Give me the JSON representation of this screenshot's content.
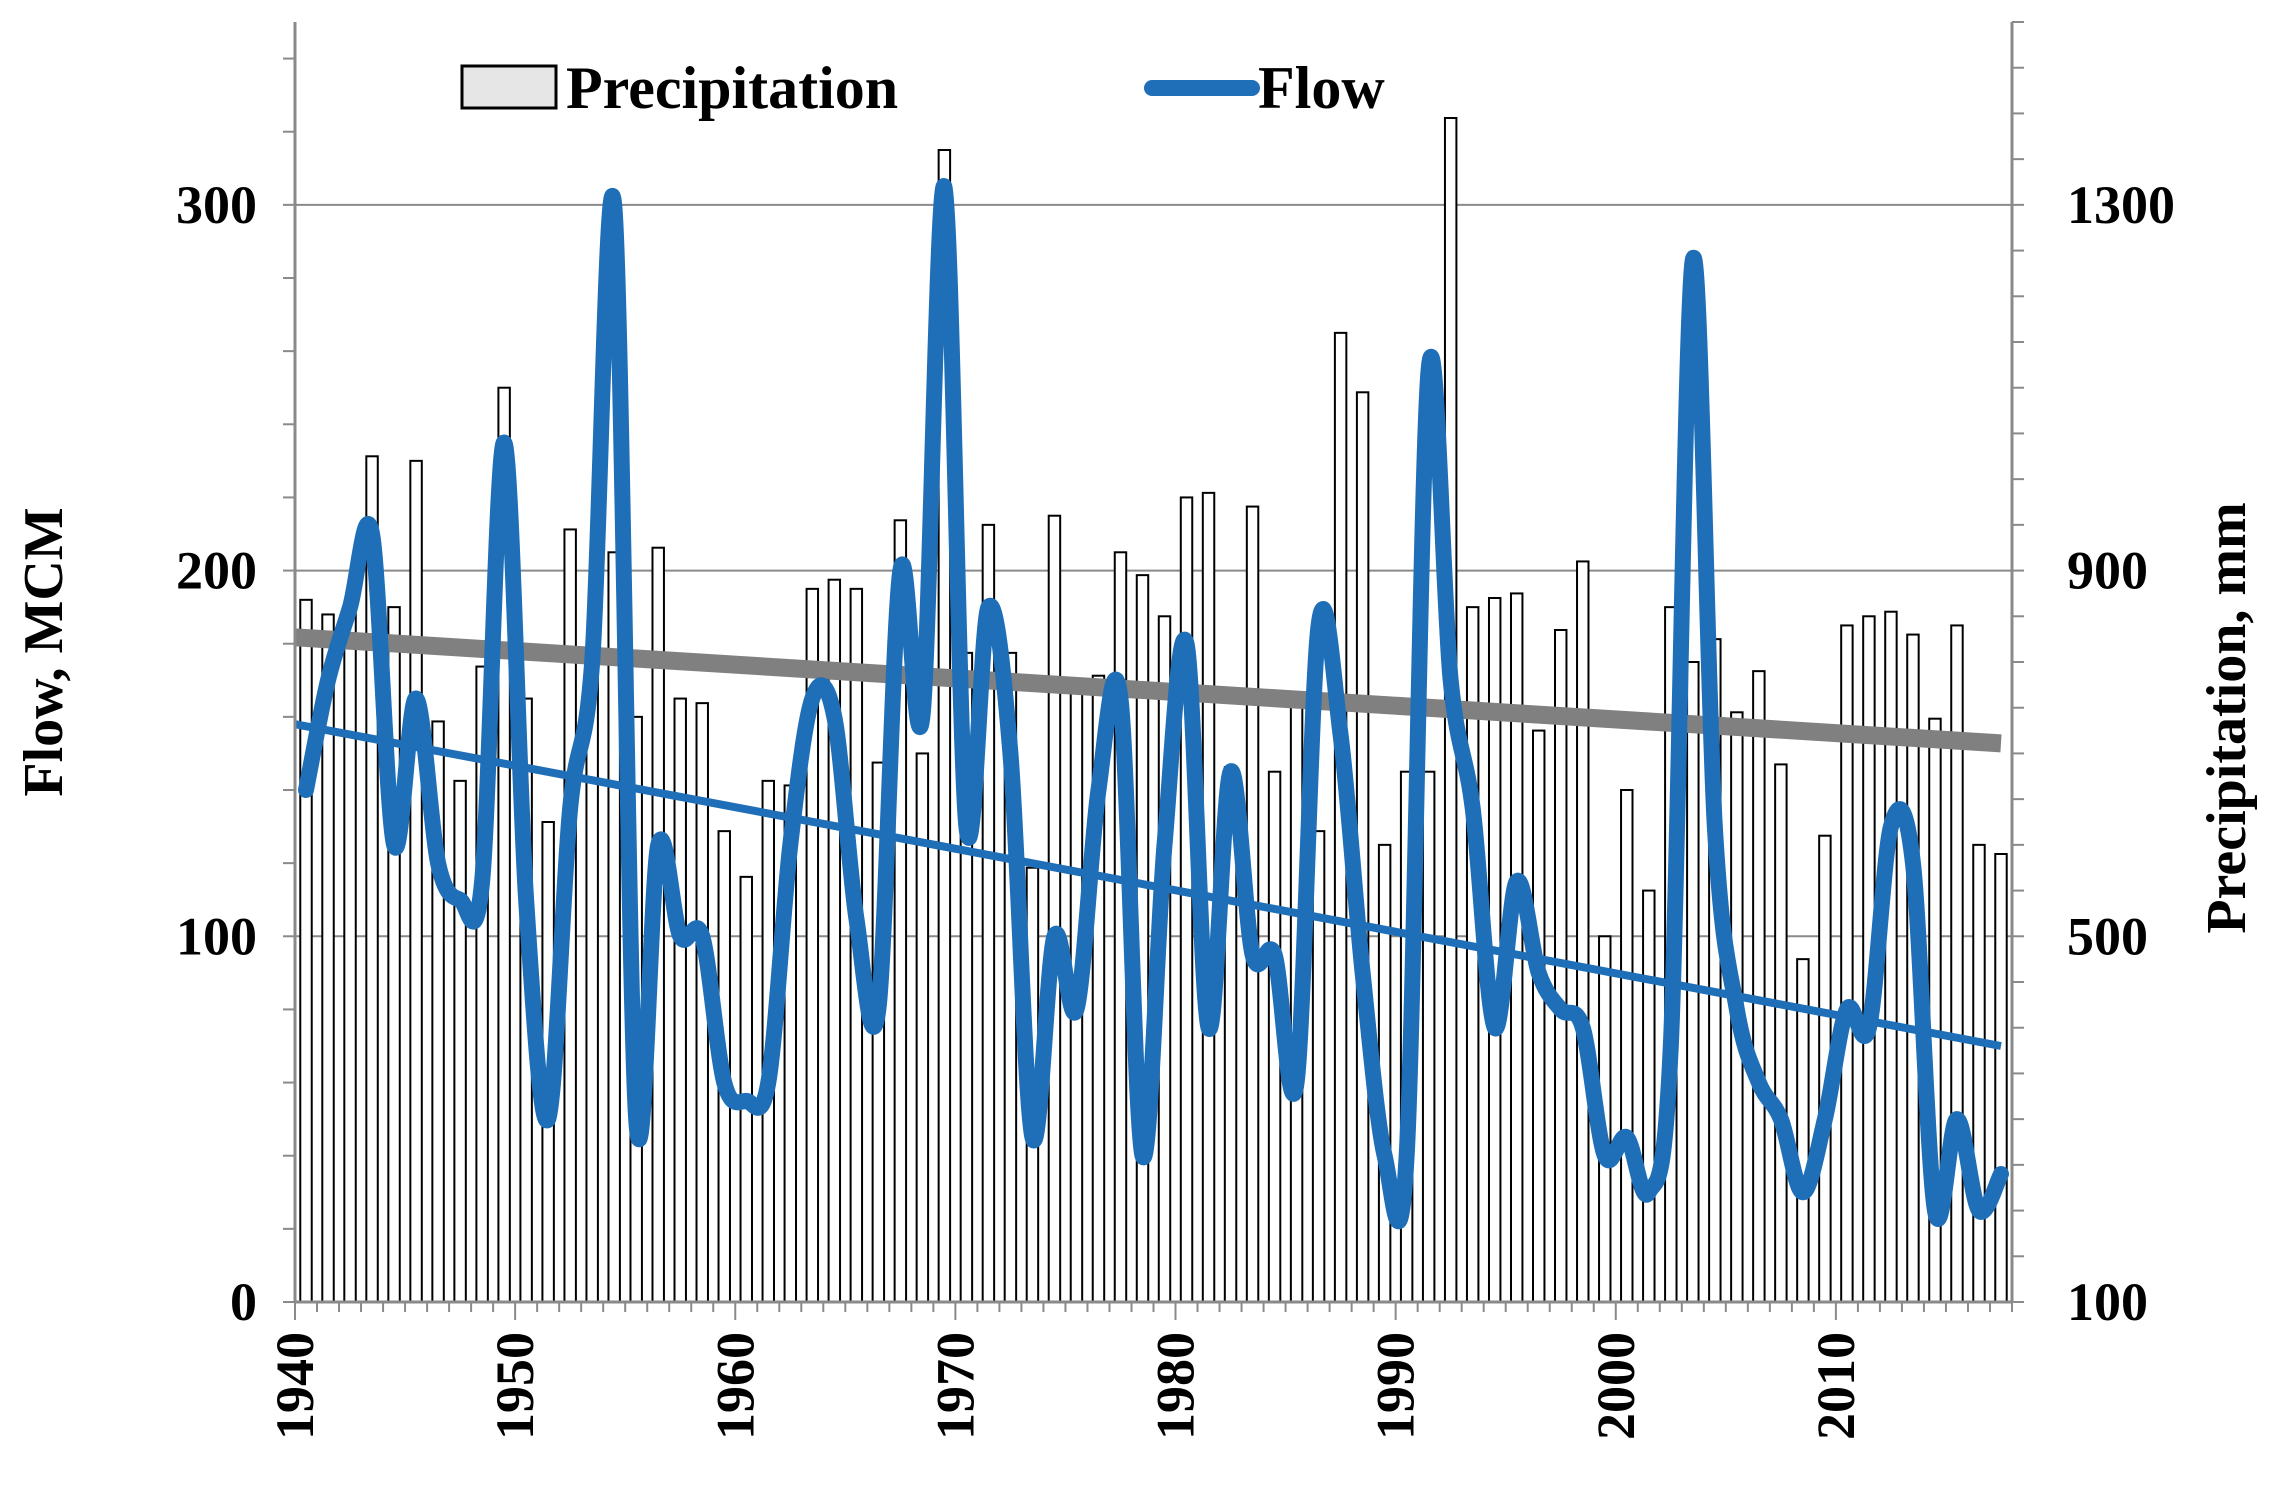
{
  "chart_data": {
    "type": "bar",
    "ylabel": "Flow, MCM",
    "y2label": "Precipitation, mm",
    "ylim": [
      0,
      350
    ],
    "y2lim": [
      100,
      1500
    ],
    "xlim": [
      1940,
      2017
    ],
    "x_ticks": [
      "1940",
      "1950",
      "1960",
      "1970",
      "1980",
      "1990",
      "2000",
      "2010"
    ],
    "y_ticks": [
      "0",
      "100",
      "200",
      "300"
    ],
    "y2_ticks": [
      "100",
      "500",
      "900",
      "1300"
    ],
    "legend": {
      "placement": "top",
      "entries": [
        "Precipitation",
        "Flow"
      ]
    },
    "grid": true,
    "colors": {
      "flow": "#1f6fb8",
      "trend_precip": "#808080",
      "bars_edge": "#000000",
      "bars_fill": "#ffffff"
    },
    "years": [
      1940,
      1941,
      1942,
      1943,
      1944,
      1945,
      1946,
      1947,
      1948,
      1949,
      1950,
      1951,
      1952,
      1953,
      1954,
      1955,
      1956,
      1957,
      1958,
      1959,
      1960,
      1961,
      1962,
      1963,
      1964,
      1965,
      1966,
      1967,
      1968,
      1969,
      1970,
      1971,
      1972,
      1973,
      1974,
      1975,
      1976,
      1977,
      1978,
      1979,
      1980,
      1981,
      1982,
      1983,
      1984,
      1985,
      1986,
      1987,
      1988,
      1989,
      1990,
      1991,
      1992,
      1993,
      1994,
      1995,
      1996,
      1997,
      1998,
      1999,
      2000,
      2001,
      2002,
      2003,
      2004,
      2005,
      2006,
      2007,
      2008,
      2009,
      2010,
      2011,
      2012,
      2013,
      2014,
      2015,
      2016,
      2017
    ],
    "series": [
      {
        "name": "Precipitation",
        "type": "bar",
        "axis": "right",
        "values": [
          868,
          852,
          860,
          1025,
          860,
          1020,
          735,
          670,
          795,
          1100,
          760,
          625,
          945,
          800,
          920,
          740,
          925,
          760,
          755,
          615,
          565,
          670,
          665,
          880,
          890,
          880,
          690,
          955,
          700,
          1360,
          810,
          950,
          810,
          575,
          960,
          770,
          785,
          920,
          895,
          850,
          980,
          985,
          685,
          970,
          680,
          765,
          615,
          1160,
          1095,
          600,
          680,
          680,
          1395,
          860,
          870,
          875,
          725,
          835,
          910,
          500,
          660,
          550,
          860,
          800,
          825,
          745,
          790,
          688,
          475,
          610,
          840,
          850,
          855,
          830,
          738,
          840,
          600,
          590
        ]
      },
      {
        "name": "Flow",
        "type": "line",
        "axis": "left",
        "values": [
          140,
          170,
          190,
          210,
          125,
          165,
          120,
          110,
          115,
          235,
          110,
          50,
          135,
          175,
          300,
          50,
          125,
          100,
          100,
          60,
          55,
          60,
          125,
          165,
          160,
          105,
          80,
          200,
          160,
          305,
          130,
          190,
          150,
          45,
          100,
          80,
          140,
          165,
          40,
          125,
          180,
          75,
          145,
          95,
          95,
          60,
          185,
          155,
          90,
          40,
          40,
          255,
          170,
          135,
          75,
          115,
          90,
          80,
          75,
          40,
          45,
          30,
          70,
          285,
          130,
          80,
          60,
          50,
          30,
          50,
          80,
          75,
          130,
          120,
          25,
          50,
          25,
          35
        ]
      }
    ],
    "trendlines": [
      {
        "of": "Precipitation",
        "axis": "right",
        "x": [
          1940,
          2017
        ],
        "y": [
          827,
          711
        ]
      },
      {
        "of": "Flow",
        "axis": "left",
        "x": [
          1940,
          2017
        ],
        "y": [
          158,
          70
        ]
      }
    ]
  }
}
